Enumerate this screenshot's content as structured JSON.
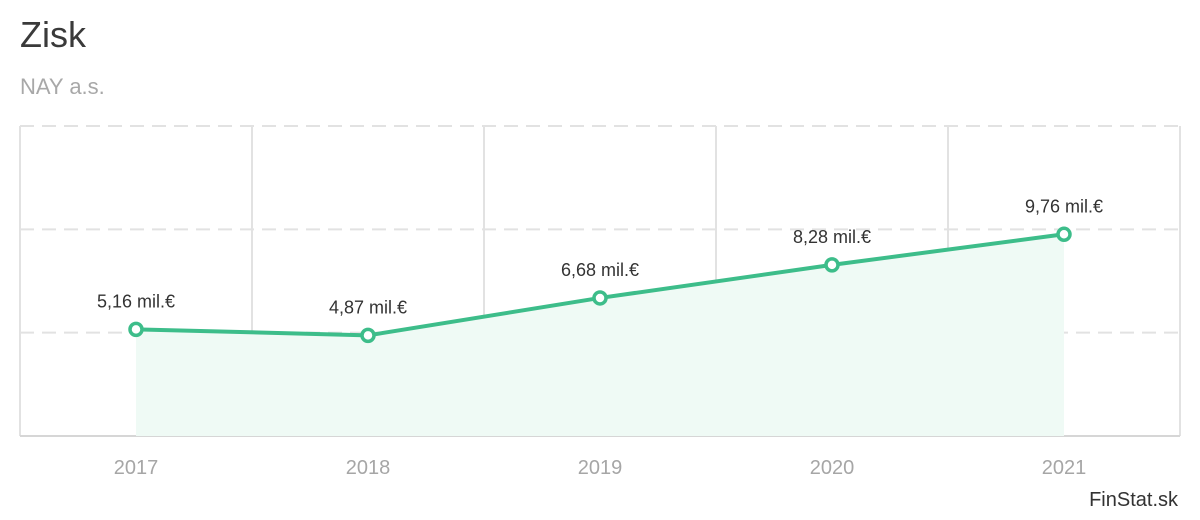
{
  "header": {
    "title": "Zisk",
    "subtitle": "NAY a.s."
  },
  "source": "FinStat.sk",
  "colors": {
    "line": "#3dbd8a",
    "area": "#effaf5",
    "grid": "#e2e2e2",
    "text": "#333333",
    "axis_text": "#a6a6a6"
  },
  "chart_data": {
    "type": "area",
    "categories": [
      "2017",
      "2018",
      "2019",
      "2020",
      "2021"
    ],
    "series": [
      {
        "values": [
          5.16,
          4.87,
          6.68,
          8.28,
          9.76
        ],
        "labels": [
          "5,16 mil.€",
          "4,87 mil.€",
          "6,68 mil.€",
          "8,28 mil.€",
          "9,76 mil.€"
        ]
      }
    ],
    "ylim": [
      0,
      15
    ],
    "grid": true,
    "legend": "none"
  }
}
